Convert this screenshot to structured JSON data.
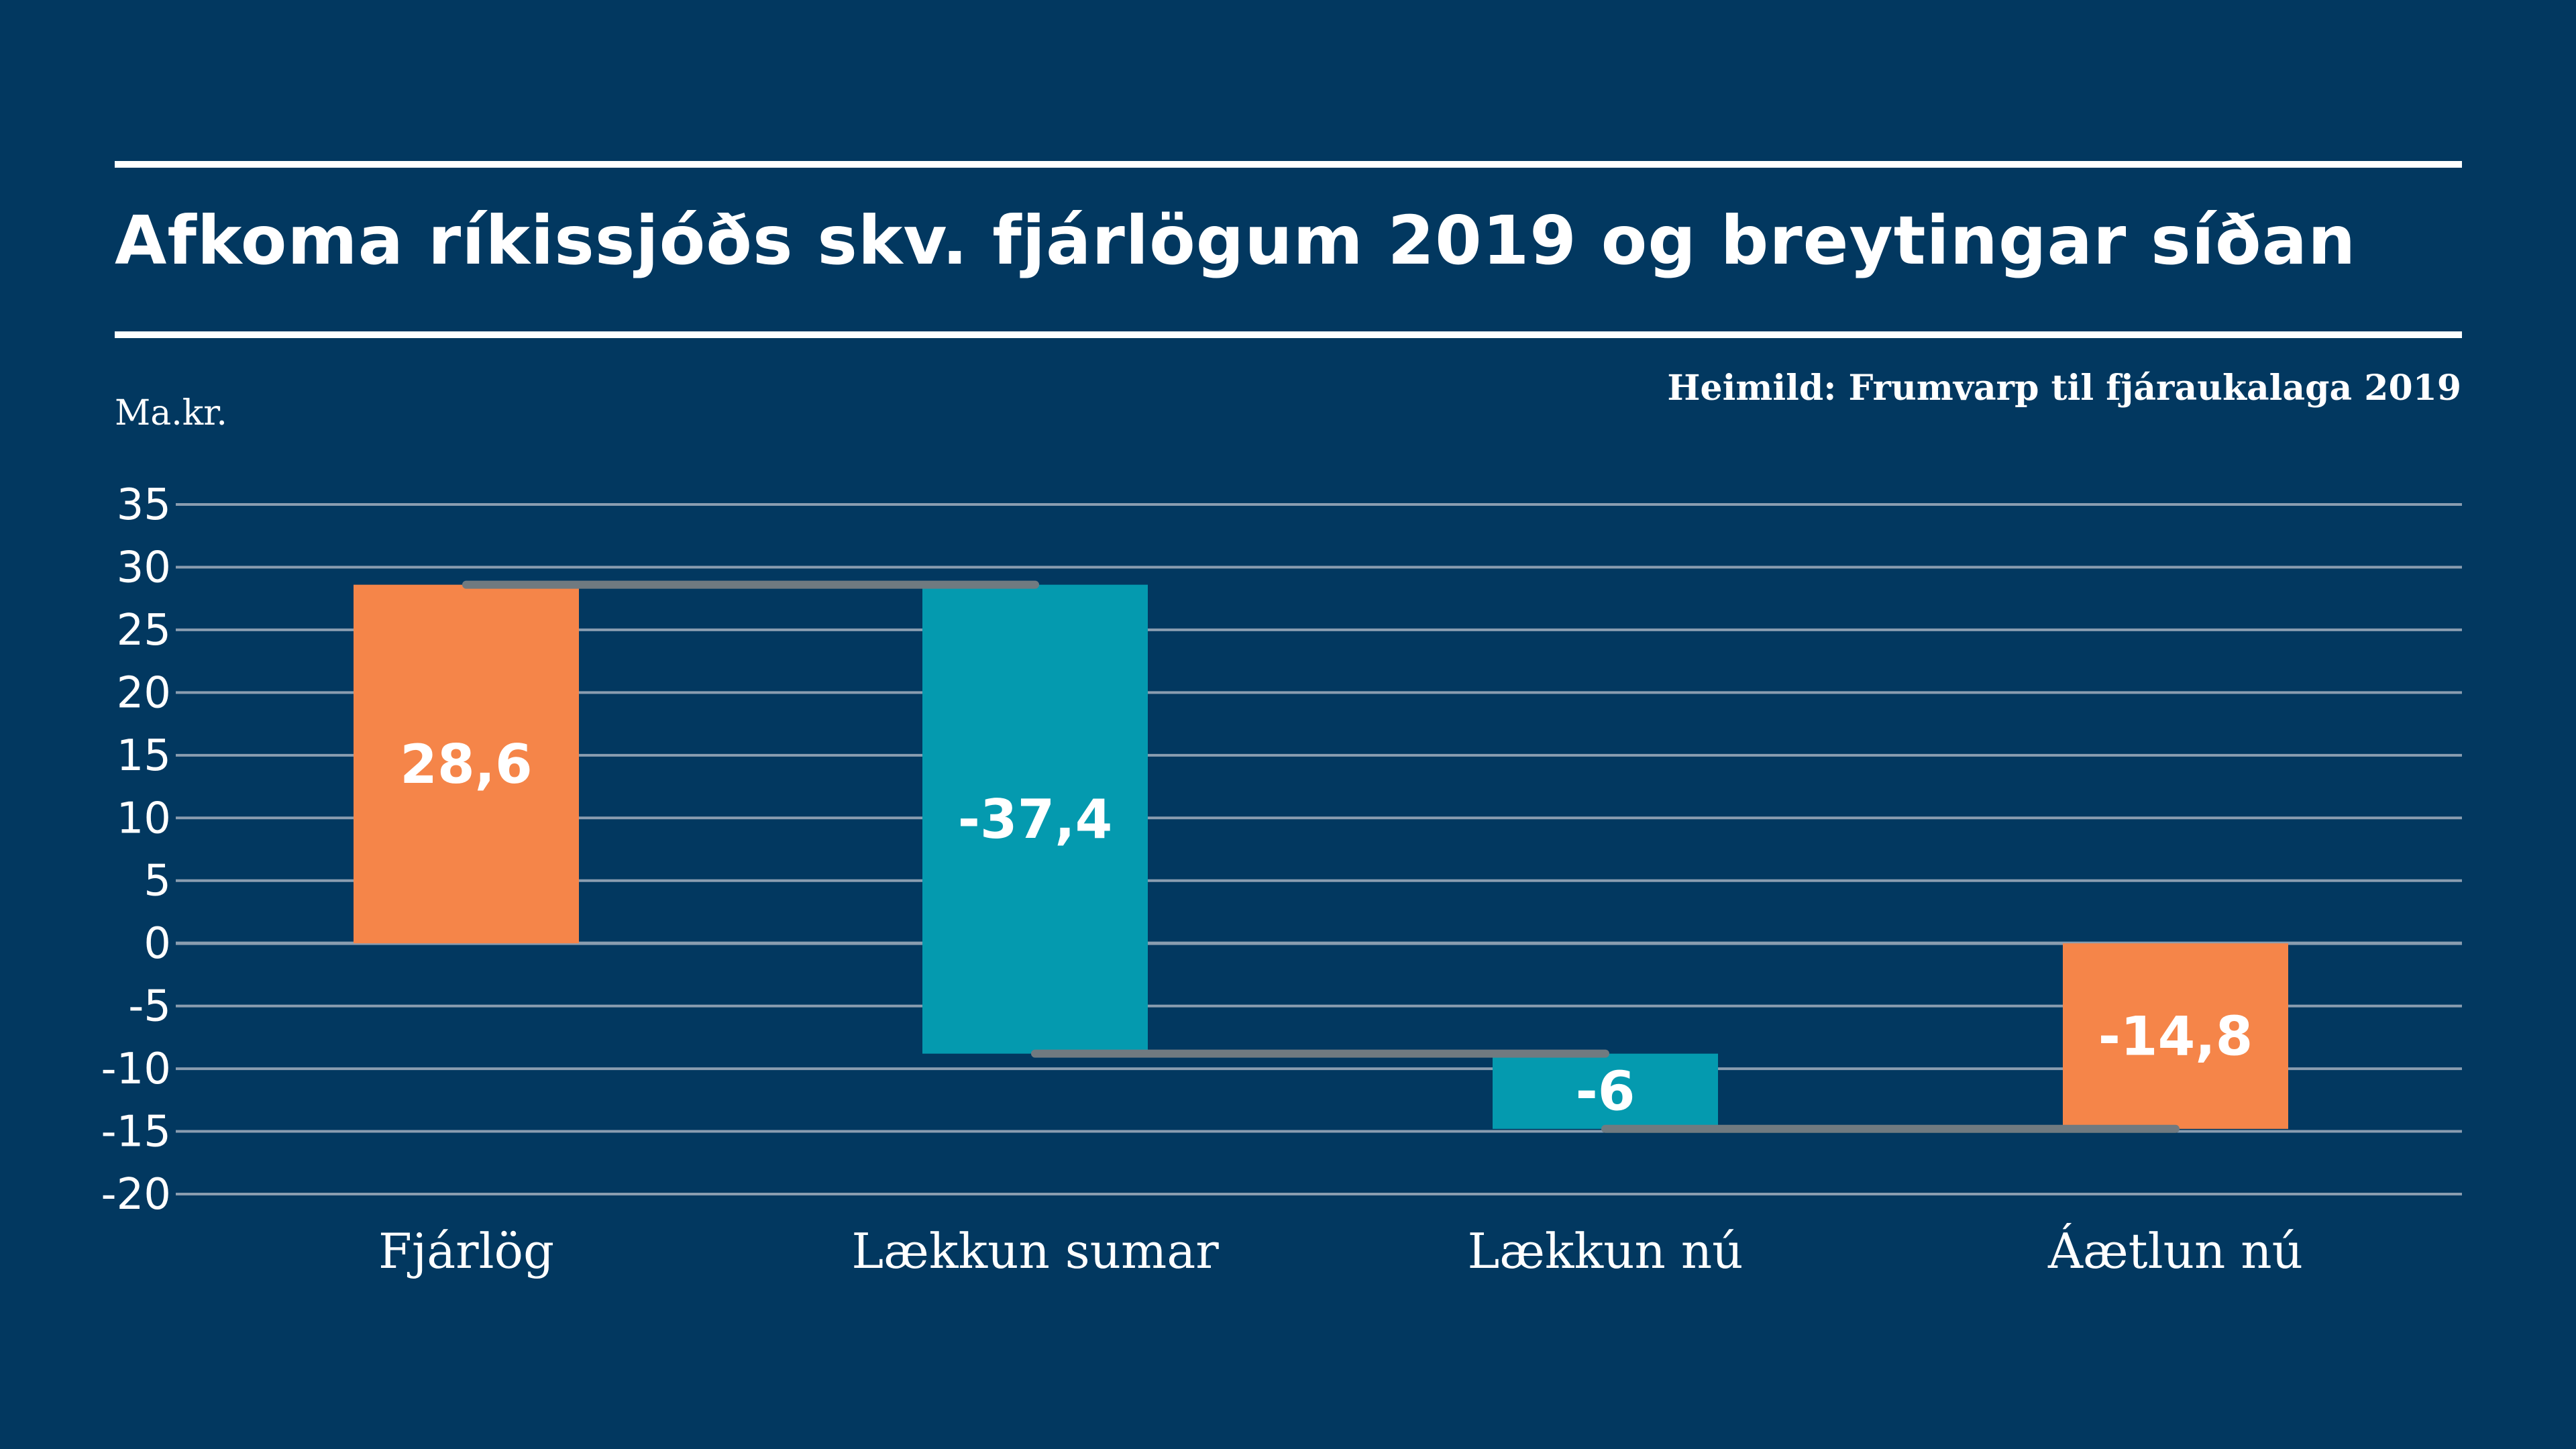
{
  "chart_data": {
    "type": "waterfall",
    "title": "Afkoma ríkissjóðs skv. fjárlögum 2019 og breytingar síðan",
    "source": "Heimild: Frumvarp til fjáraukalaga 2019",
    "ylabel": "Ma.kr.",
    "ylim": [
      -20,
      35
    ],
    "yticks": [
      35,
      30,
      25,
      20,
      15,
      10,
      5,
      0,
      -5,
      -10,
      -15,
      -20
    ],
    "grid": true,
    "categories": [
      "Fjárlög",
      "Lækkun sumar",
      "Lækkun nú",
      "Áætlun nú"
    ],
    "values": [
      28.6,
      -37.4,
      -6,
      -14.8
    ],
    "labels": [
      "28,6",
      "-37,4",
      "-6",
      "-14,8"
    ],
    "kinds": [
      "total",
      "change",
      "change",
      "total"
    ],
    "colors": {
      "total": "#F58549",
      "change": "#049AAF",
      "connector": "#707A80",
      "grid": "#8A9DB0",
      "background": "#023860"
    }
  }
}
